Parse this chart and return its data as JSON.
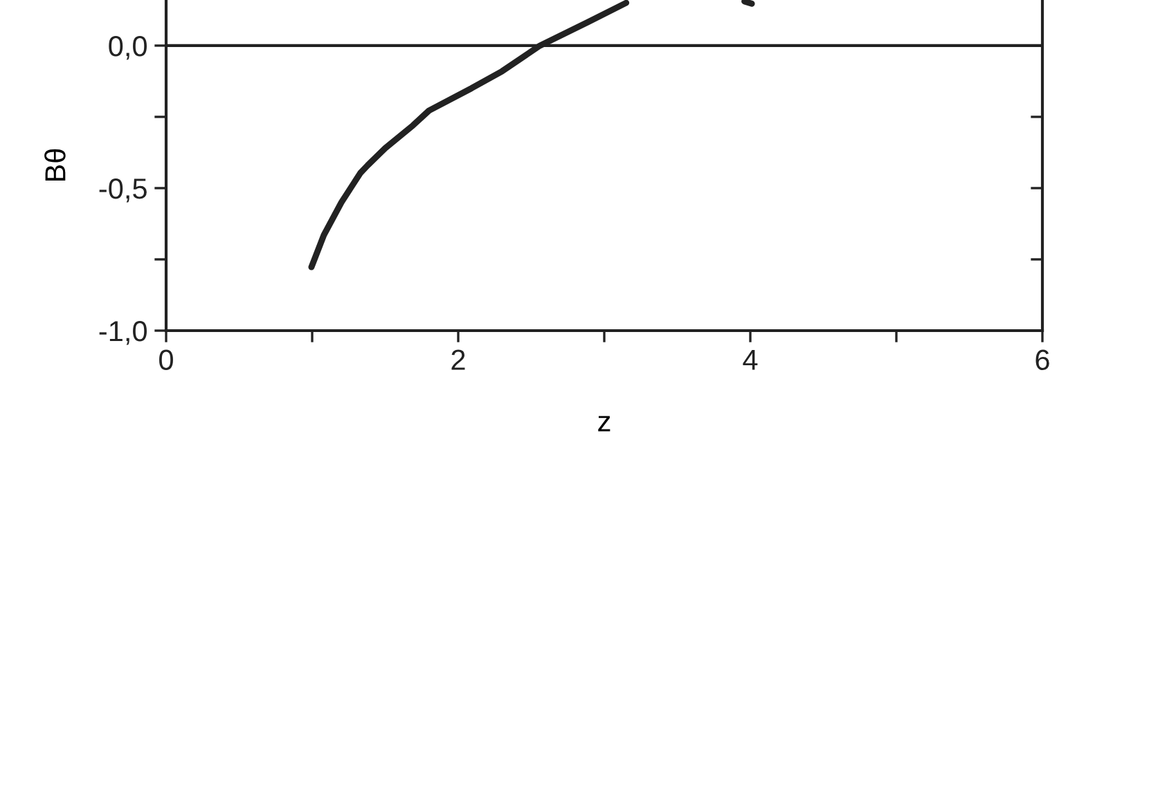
{
  "chart_data": {
    "type": "line",
    "xlabel": "z",
    "ylabel": "Bθ",
    "xlim": [
      0,
      6
    ],
    "ylim": [
      -1,
      0.16
    ],
    "xticks": [
      0,
      {
        "value": 1,
        "label": null
      },
      2,
      {
        "value": 3,
        "label": null
      },
      4,
      {
        "value": 5,
        "label": null
      },
      6
    ],
    "yticks": [
      {
        "value": -1,
        "label": "-1,0"
      },
      {
        "value": -0.75,
        "label": null
      },
      {
        "value": -0.5,
        "label": "-0,5"
      },
      {
        "value": -0.25,
        "label": null
      },
      {
        "value": 0,
        "label": "0,0"
      }
    ],
    "ref_lines": [
      {
        "axis": "y",
        "value": 0,
        "color": "#222222"
      }
    ],
    "grid": false,
    "legend": false,
    "marker": "none",
    "line_style": "solid",
    "series": [
      {
        "color": "#222222",
        "x": [
          0.995,
          1.08,
          1.2,
          1.33,
          1.38,
          1.5,
          1.69,
          1.8,
          2.09,
          2.3,
          2.56,
          2.89,
          3.15,
          3.6,
          3.96,
          4.01
        ],
        "values": [
          -0.777,
          -0.665,
          -0.55,
          -0.447,
          -0.42,
          -0.36,
          -0.28,
          -0.228,
          -0.15,
          -0.09,
          0,
          0.083,
          0.15,
          null,
          0.155,
          0.147
        ]
      }
    ]
  }
}
